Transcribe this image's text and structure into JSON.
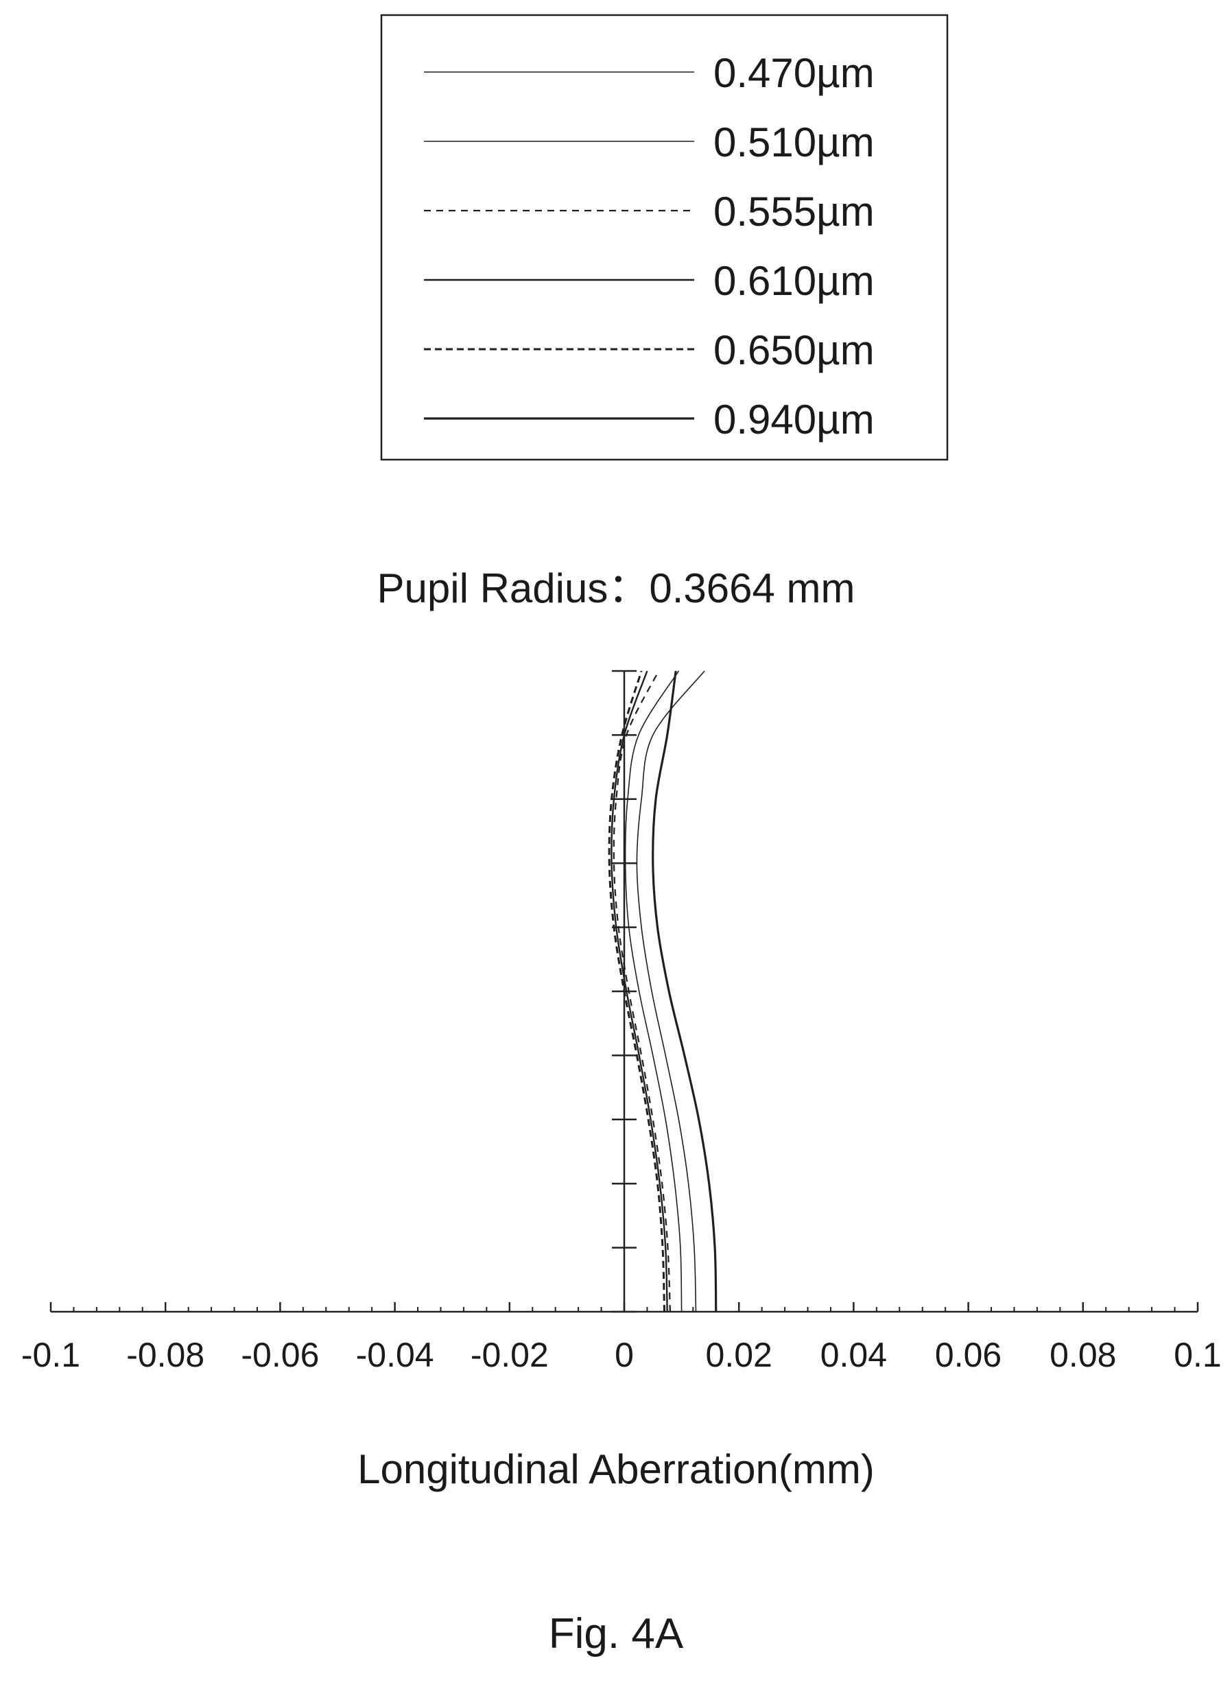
{
  "chart_data": {
    "type": "line",
    "subtitle": "Pupil Radius：0.3664 mm",
    "xlabel": "Longitudinal Aberration(mm)",
    "ylabel": "",
    "caption": "Fig. 4A",
    "xlim": [
      -0.1,
      0.1
    ],
    "ylim": [
      0,
      1
    ],
    "x_ticks": [
      "-0.1",
      "-0.08",
      "-0.06",
      "-0.04",
      "-0.02",
      "0",
      "0.02",
      "0.04",
      "0.06",
      "0.08",
      "0.1"
    ],
    "y_tick_values": [
      0,
      0.1,
      0.2,
      0.3,
      0.4,
      0.5,
      0.6,
      0.7,
      0.8,
      0.9,
      1.0
    ],
    "legend_placement": "top-center",
    "grid": false,
    "y": [
      0,
      0.1,
      0.2,
      0.3,
      0.4,
      0.5,
      0.6,
      0.7,
      0.8,
      0.9,
      1.0
    ],
    "series": [
      {
        "name": "0.470µm",
        "dash": "none",
        "stroke_width": 1.6,
        "x": [
          0.0125,
          0.0122,
          0.0112,
          0.0095,
          0.0072,
          0.0048,
          0.003,
          0.0022,
          0.003,
          0.005,
          0.014
        ]
      },
      {
        "name": "0.510µm",
        "dash": "none",
        "stroke_width": 1.6,
        "x": [
          0.01,
          0.0098,
          0.0088,
          0.0072,
          0.005,
          0.0026,
          0.0008,
          0.0002,
          0.0006,
          0.0025,
          0.0095
        ]
      },
      {
        "name": "0.555µm",
        "dash": "10,8",
        "stroke_width": 2.2,
        "x": [
          0.008,
          0.0076,
          0.0066,
          0.005,
          0.003,
          0.0008,
          -0.001,
          -0.0018,
          -0.0014,
          0.0004,
          0.006
        ]
      },
      {
        "name": "0.610µm",
        "dash": "none",
        "stroke_width": 2.4,
        "x": [
          0.0075,
          0.0072,
          0.0062,
          0.0046,
          0.0026,
          0.0004,
          -0.0014,
          -0.0022,
          -0.0018,
          0.0,
          0.004
        ]
      },
      {
        "name": "0.650µm",
        "dash": "10,6",
        "stroke_width": 3.0,
        "x": [
          0.007,
          0.0067,
          0.0058,
          0.0042,
          0.0022,
          0.0,
          -0.0018,
          -0.0026,
          -0.0022,
          -0.0004,
          0.003
        ]
      },
      {
        "name": "0.940µm",
        "dash": "none",
        "stroke_width": 3.2,
        "x": [
          0.016,
          0.0158,
          0.0148,
          0.013,
          0.0105,
          0.0078,
          0.0058,
          0.005,
          0.0055,
          0.0075,
          0.009
        ]
      }
    ]
  }
}
